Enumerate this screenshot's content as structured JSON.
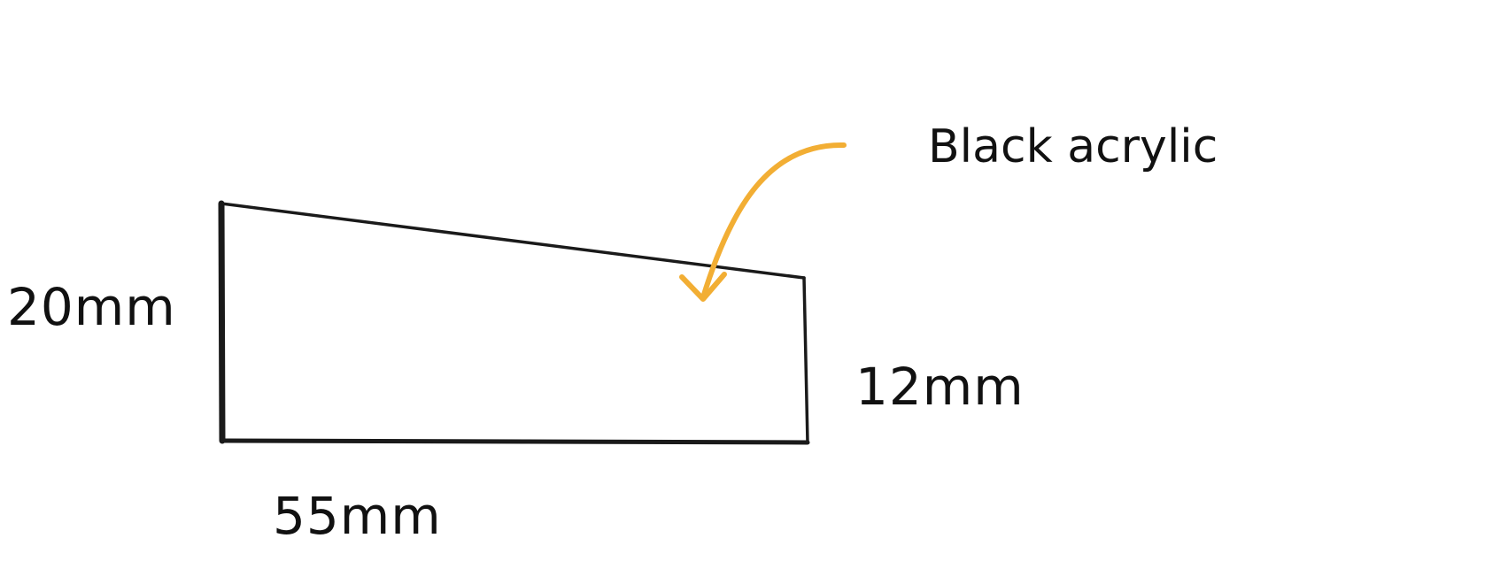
{
  "labels": {
    "left_height": "20mm",
    "right_height": "12mm",
    "bottom_width": "55mm",
    "material": "Black acrylic"
  },
  "colors": {
    "outline": "#1a1a1a",
    "arrow": "#F2AE34",
    "text": "#111111",
    "background": "#ffffff"
  }
}
